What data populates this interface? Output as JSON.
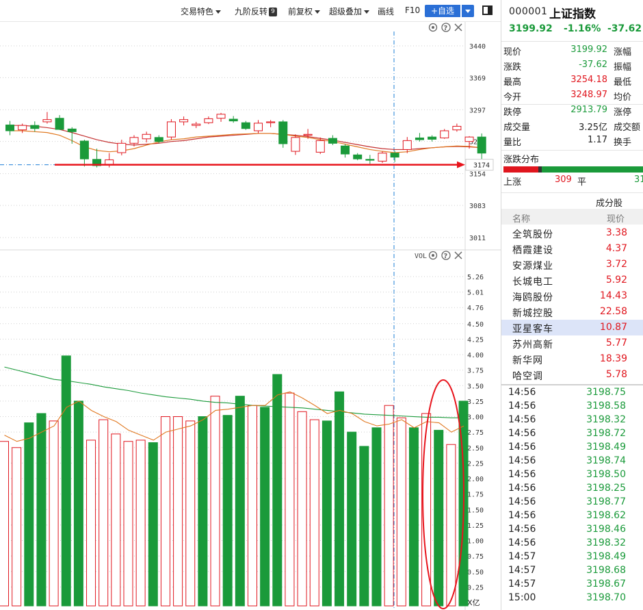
{
  "toolbar": {
    "items": [
      "交易特色",
      "九阶反转",
      "前复权",
      "超级叠加",
      "画线",
      "F10"
    ],
    "nine_badge": "9",
    "add_label": "+自选"
  },
  "colors": {
    "up": "#e0161e",
    "down": "#1a9a3a",
    "ma_short": "#e07820",
    "ma_long": "#1a9a3a",
    "ma_mid": "#c43030",
    "annotation": "#e8141c",
    "crosshair": "#1e7fd6"
  },
  "icons": [
    "settings-icon",
    "help-icon",
    "close-icon",
    "layout-toggle-icon",
    "dropdown-caret-icon"
  ],
  "header": {
    "code": "000001",
    "name": "上证指数",
    "price": "3199.92",
    "change_pct": "-1.16%",
    "change": "-37.62"
  },
  "stats": [
    {
      "label": "现价",
      "value": "3199.92",
      "color": "down",
      "label2": "涨幅"
    },
    {
      "label": "涨跌",
      "value": "-37.62",
      "color": "down",
      "label2": "振幅"
    },
    {
      "label": "最高",
      "value": "3254.18",
      "color": "up",
      "label2": "最低"
    },
    {
      "label": "今开",
      "value": "3248.97",
      "color": "up",
      "label2": "均价"
    },
    {
      "label": "跌停",
      "value": "2913.79",
      "color": "down",
      "label2": "涨停"
    },
    {
      "label": "成交量",
      "value": "3.25亿",
      "color": "dark",
      "label2": "成交额"
    },
    {
      "label": "量比",
      "value": "1.17",
      "color": "dark",
      "label2": "换手"
    }
  ],
  "distribution": {
    "title": "涨跌分布",
    "up_label": "上涨",
    "up_count": "309",
    "flat_label": "平",
    "down_count": "31",
    "up_fraction": 0.25
  },
  "constituents": {
    "title": "成分股",
    "col_name": "名称",
    "col_price": "现价",
    "rows": [
      {
        "name": "全筑股份",
        "price": "3.38"
      },
      {
        "name": "栖霞建设",
        "price": "4.37"
      },
      {
        "name": "安源煤业",
        "price": "3.72"
      },
      {
        "name": "长城电工",
        "price": "5.92"
      },
      {
        "name": "海鸥股份",
        "price": "14.43"
      },
      {
        "name": "新城控股",
        "price": "22.58"
      },
      {
        "name": "亚星客车",
        "price": "10.87",
        "selected": true
      },
      {
        "name": "苏州高新",
        "price": "5.77"
      },
      {
        "name": "新华网",
        "price": "18.39"
      },
      {
        "name": "哈空调",
        "price": "5.78"
      }
    ]
  },
  "ticks": [
    {
      "time": "14:56",
      "price": "3198.75"
    },
    {
      "time": "14:56",
      "price": "3198.58"
    },
    {
      "time": "14:56",
      "price": "3198.32"
    },
    {
      "time": "14:56",
      "price": "3198.72"
    },
    {
      "time": "14:56",
      "price": "3198.49"
    },
    {
      "time": "14:56",
      "price": "3198.74"
    },
    {
      "time": "14:56",
      "price": "3198.50"
    },
    {
      "time": "14:56",
      "price": "3198.25"
    },
    {
      "time": "14:56",
      "price": "3198.77"
    },
    {
      "time": "14:56",
      "price": "3198.62"
    },
    {
      "time": "14:56",
      "price": "3198.46"
    },
    {
      "time": "14:56",
      "price": "3198.32"
    },
    {
      "time": "14:57",
      "price": "3198.49"
    },
    {
      "time": "14:57",
      "price": "3198.68"
    },
    {
      "time": "14:57",
      "price": "3198.67"
    },
    {
      "time": "15:00",
      "price": "3198.70"
    }
  ],
  "chart_data": [
    {
      "type": "candlestick",
      "yticks": [
        "3440",
        "3369",
        "3297",
        "3226",
        "3154",
        "3083",
        "3011"
      ],
      "ylim": [
        2980,
        3480
      ],
      "price_marker": "3174",
      "candles": [
        {
          "o": 3263,
          "h": 3272,
          "l": 3240,
          "c": 3250
        },
        {
          "o": 3252,
          "h": 3266,
          "l": 3245,
          "c": 3262
        },
        {
          "o": 3262,
          "h": 3271,
          "l": 3248,
          "c": 3255
        },
        {
          "o": 3270,
          "h": 3292,
          "l": 3266,
          "c": 3275
        },
        {
          "o": 3278,
          "h": 3285,
          "l": 3252,
          "c": 3253
        },
        {
          "o": 3254,
          "h": 3258,
          "l": 3221,
          "c": 3248
        },
        {
          "o": 3227,
          "h": 3230,
          "l": 3170,
          "c": 3187
        },
        {
          "o": 3186,
          "h": 3210,
          "l": 3168,
          "c": 3172
        },
        {
          "o": 3174,
          "h": 3200,
          "l": 3168,
          "c": 3185
        },
        {
          "o": 3201,
          "h": 3230,
          "l": 3195,
          "c": 3222
        },
        {
          "o": 3222,
          "h": 3240,
          "l": 3215,
          "c": 3235
        },
        {
          "o": 3232,
          "h": 3248,
          "l": 3224,
          "c": 3242
        },
        {
          "o": 3235,
          "h": 3240,
          "l": 3222,
          "c": 3226
        },
        {
          "o": 3236,
          "h": 3276,
          "l": 3230,
          "c": 3270
        },
        {
          "o": 3270,
          "h": 3282,
          "l": 3262,
          "c": 3275
        },
        {
          "o": 3262,
          "h": 3270,
          "l": 3256,
          "c": 3265
        },
        {
          "o": 3268,
          "h": 3282,
          "l": 3265,
          "c": 3277
        },
        {
          "o": 3278,
          "h": 3290,
          "l": 3270,
          "c": 3287
        },
        {
          "o": 3276,
          "h": 3283,
          "l": 3268,
          "c": 3272
        },
        {
          "o": 3268,
          "h": 3272,
          "l": 3252,
          "c": 3255
        },
        {
          "o": 3250,
          "h": 3274,
          "l": 3244,
          "c": 3267
        },
        {
          "o": 3268,
          "h": 3274,
          "l": 3258,
          "c": 3270
        },
        {
          "o": 3270,
          "h": 3274,
          "l": 3212,
          "c": 3221
        },
        {
          "o": 3204,
          "h": 3242,
          "l": 3196,
          "c": 3235
        },
        {
          "o": 3240,
          "h": 3254,
          "l": 3232,
          "c": 3242
        },
        {
          "o": 3202,
          "h": 3235,
          "l": 3198,
          "c": 3228
        },
        {
          "o": 3233,
          "h": 3240,
          "l": 3218,
          "c": 3222
        },
        {
          "o": 3216,
          "h": 3220,
          "l": 3190,
          "c": 3198
        },
        {
          "o": 3196,
          "h": 3200,
          "l": 3184,
          "c": 3187
        },
        {
          "o": 3186,
          "h": 3196,
          "l": 3176,
          "c": 3184
        },
        {
          "o": 3182,
          "h": 3204,
          "l": 3178,
          "c": 3200
        },
        {
          "o": 3200,
          "h": 3205,
          "l": 3180,
          "c": 3191
        },
        {
          "o": 3208,
          "h": 3236,
          "l": 3200,
          "c": 3228
        },
        {
          "o": 3234,
          "h": 3245,
          "l": 3226,
          "c": 3230
        },
        {
          "o": 3236,
          "h": 3240,
          "l": 3226,
          "c": 3231
        },
        {
          "o": 3234,
          "h": 3254,
          "l": 3232,
          "c": 3250
        },
        {
          "o": 3252,
          "h": 3266,
          "l": 3248,
          "c": 3260
        },
        {
          "o": 3226,
          "h": 3238,
          "l": 3210,
          "c": 3236
        },
        {
          "o": 3236,
          "h": 3244,
          "l": 3170,
          "c": 3200
        }
      ],
      "ma_short": [
        3250,
        3250,
        3248,
        3246,
        3240,
        3228,
        3214,
        3206,
        3203,
        3205,
        3210,
        3218,
        3225,
        3230,
        3232,
        3236,
        3238,
        3240,
        3242,
        3243,
        3244,
        3244,
        3242,
        3238,
        3235,
        3230,
        3226,
        3220,
        3214,
        3208,
        3204,
        3201,
        3203,
        3208,
        3212,
        3214,
        3216,
        3215,
        3212
      ],
      "ma_mid": [
        3262,
        3262,
        3260,
        3257,
        3253,
        3246,
        3238,
        3230,
        3224,
        3220,
        3218,
        3220,
        3222,
        3226,
        3228,
        3232,
        3236,
        3238,
        3240,
        3242,
        3244,
        3244,
        3242,
        3240,
        3237,
        3233,
        3229,
        3224,
        3219,
        3214,
        3210,
        3208,
        3208,
        3210,
        3212,
        3214,
        3215,
        3214,
        3212
      ]
    },
    {
      "type": "bar",
      "label": "VOL",
      "unit": "X亿",
      "yticks": [
        "5.26",
        "5.01",
        "4.76",
        "4.50",
        "4.25",
        "4.00",
        "3.75",
        "3.50",
        "3.25",
        "3.00",
        "2.75",
        "2.50",
        "2.25",
        "2.00",
        "1.75",
        "1.50",
        "1.25",
        "1.00",
        "0.75",
        "0.50",
        "0.25"
      ],
      "ylim": [
        0,
        5.26
      ],
      "bars": [
        {
          "v": 2.6,
          "up": true
        },
        {
          "v": 2.5,
          "up": true
        },
        {
          "v": 2.9,
          "up": false
        },
        {
          "v": 3.05,
          "up": false
        },
        {
          "v": 2.93,
          "up": true
        },
        {
          "v": 3.98,
          "up": false
        },
        {
          "v": 3.25,
          "up": false
        },
        {
          "v": 2.62,
          "up": true
        },
        {
          "v": 2.95,
          "up": true
        },
        {
          "v": 2.72,
          "up": true
        },
        {
          "v": 2.6,
          "up": true
        },
        {
          "v": 2.62,
          "up": true
        },
        {
          "v": 2.58,
          "up": false
        },
        {
          "v": 3.0,
          "up": true
        },
        {
          "v": 3.0,
          "up": true
        },
        {
          "v": 2.93,
          "up": true
        },
        {
          "v": 3.0,
          "up": false
        },
        {
          "v": 3.33,
          "up": true
        },
        {
          "v": 3.02,
          "up": false
        },
        {
          "v": 3.33,
          "up": false
        },
        {
          "v": 3.18,
          "up": true
        },
        {
          "v": 3.15,
          "up": false
        },
        {
          "v": 3.68,
          "up": false
        },
        {
          "v": 3.38,
          "up": true
        },
        {
          "v": 3.08,
          "up": true
        },
        {
          "v": 2.95,
          "up": true
        },
        {
          "v": 2.93,
          "up": false
        },
        {
          "v": 3.4,
          "up": false
        },
        {
          "v": 2.75,
          "up": false
        },
        {
          "v": 2.52,
          "up": false
        },
        {
          "v": 2.82,
          "up": false
        },
        {
          "v": 3.18,
          "up": true
        },
        {
          "v": 2.98,
          "up": true
        },
        {
          "v": 2.82,
          "up": false
        },
        {
          "v": 3.05,
          "up": true
        },
        {
          "v": 2.78,
          "up": false
        },
        {
          "v": 2.55,
          "up": true
        },
        {
          "v": 3.25,
          "up": false
        }
      ],
      "ma_short": [
        2.7,
        2.6,
        2.65,
        2.75,
        2.85,
        3.15,
        3.25,
        3.1,
        3.0,
        2.92,
        2.78,
        2.7,
        2.62,
        2.75,
        2.8,
        2.85,
        2.95,
        3.1,
        3.12,
        3.15,
        3.18,
        3.18,
        3.35,
        3.4,
        3.3,
        3.18,
        3.05,
        3.1,
        3.05,
        2.92,
        2.85,
        2.88,
        2.95,
        2.82,
        2.92,
        2.9,
        2.75,
        2.85
      ],
      "ma_long": [
        3.8,
        3.75,
        3.7,
        3.65,
        3.6,
        3.58,
        3.55,
        3.52,
        3.48,
        3.45,
        3.42,
        3.38,
        3.35,
        3.32,
        3.3,
        3.28,
        3.25,
        3.23,
        3.22,
        3.2,
        3.18,
        3.17,
        3.16,
        3.15,
        3.14,
        3.12,
        3.1,
        3.08,
        3.06,
        3.04,
        3.03,
        3.02,
        3.01,
        3.0,
        2.99,
        2.99,
        2.98,
        2.98
      ]
    }
  ]
}
